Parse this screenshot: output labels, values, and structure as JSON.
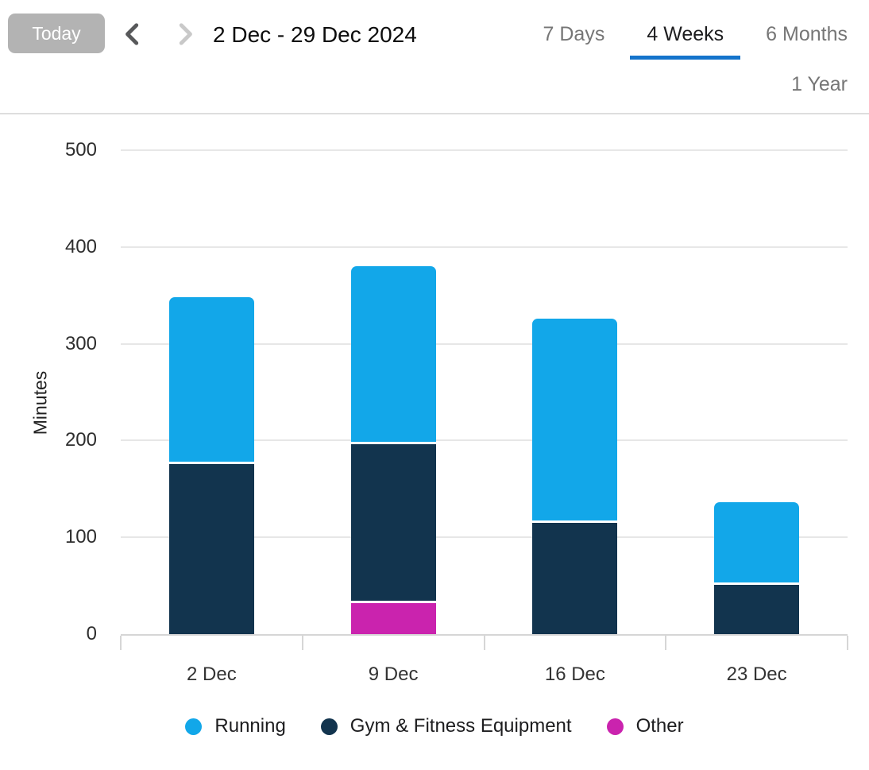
{
  "header": {
    "today_button": "Today",
    "prev_icon": "chevron-left-icon",
    "next_icon": "chevron-right-icon",
    "date_range": "2 Dec - 29 Dec 2024",
    "tabs": [
      {
        "label": "7 Days",
        "active": false
      },
      {
        "label": "4 Weeks",
        "active": true
      },
      {
        "label": "6 Months",
        "active": false
      },
      {
        "label": "1 Year",
        "active": false
      }
    ]
  },
  "colors": {
    "accent_underline": "#1474cb",
    "today_button_bg": "#b3b3b3",
    "running": "#12a7e9",
    "gym": "#12344e",
    "other": "#ca23ae",
    "gridline": "#e7e7e7",
    "axis_line": "#d6d6d6",
    "chevron_enabled": "#58595b",
    "chevron_disabled": "#c9c9c9"
  },
  "chart_data": {
    "type": "bar",
    "stacked": true,
    "title": "",
    "categories": [
      "2 Dec",
      "9 Dec",
      "16 Dec",
      "23 Dec"
    ],
    "series": [
      {
        "name": "Running",
        "color": "#12a7e9",
        "values": [
          172,
          184,
          211,
          85
        ]
      },
      {
        "name": "Gym & Fitness Equipment",
        "color": "#12344e",
        "values": [
          176,
          164,
          115,
          51
        ]
      },
      {
        "name": "Other",
        "color": "#ca23ae",
        "values": [
          0,
          32,
          0,
          0
        ]
      }
    ],
    "stack_order_bottom_to_top": [
      "Other",
      "Gym & Fitness Equipment",
      "Running"
    ],
    "xlabel": "",
    "ylabel": "Minutes",
    "ylim": [
      0,
      500
    ],
    "yticks": [
      0,
      100,
      200,
      300,
      400,
      500
    ],
    "grid": true,
    "legend_position": "bottom"
  }
}
